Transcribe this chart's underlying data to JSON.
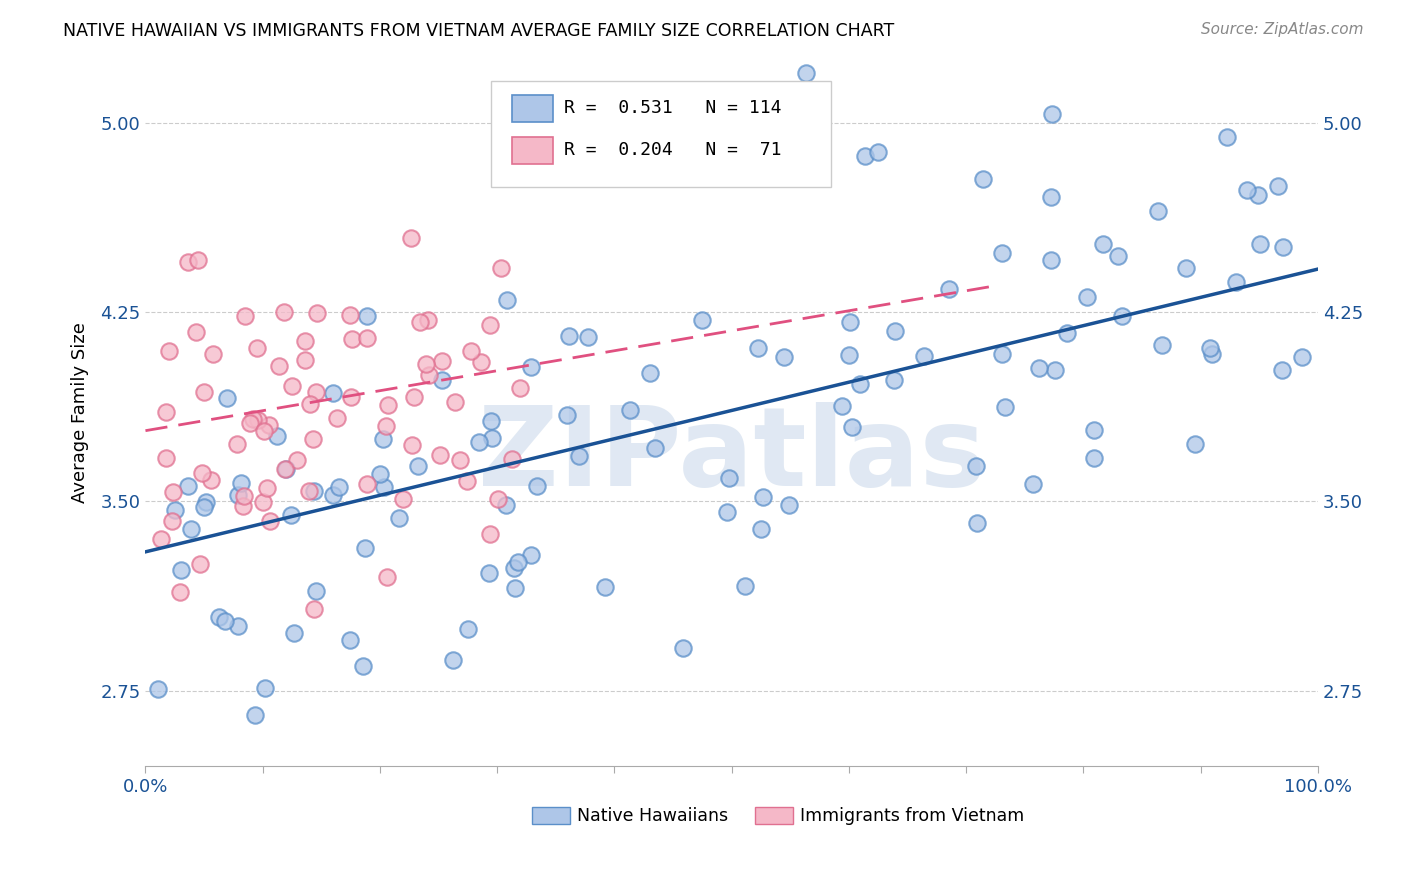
{
  "title": "NATIVE HAWAIIAN VS IMMIGRANTS FROM VIETNAM AVERAGE FAMILY SIZE CORRELATION CHART",
  "source": "Source: ZipAtlas.com",
  "ylabel": "Average Family Size",
  "yticks": [
    2.75,
    3.5,
    4.25,
    5.0
  ],
  "xlim": [
    0.0,
    100.0
  ],
  "ylim": [
    2.45,
    5.25
  ],
  "blue_R": 0.531,
  "blue_N": 114,
  "pink_R": 0.204,
  "pink_N": 71,
  "watermark": "ZIPatlas",
  "blue_fill": "#aec6e8",
  "blue_edge": "#5b8fc9",
  "blue_line": "#1a5295",
  "pink_fill": "#f5b8c8",
  "pink_edge": "#e07090",
  "pink_line": "#e05080",
  "blue_line_start_y": 3.3,
  "blue_line_end_y": 4.42,
  "pink_line_start_y": 3.78,
  "pink_line_start_x": 0,
  "pink_line_end_y": 4.35,
  "pink_line_end_x": 72
}
